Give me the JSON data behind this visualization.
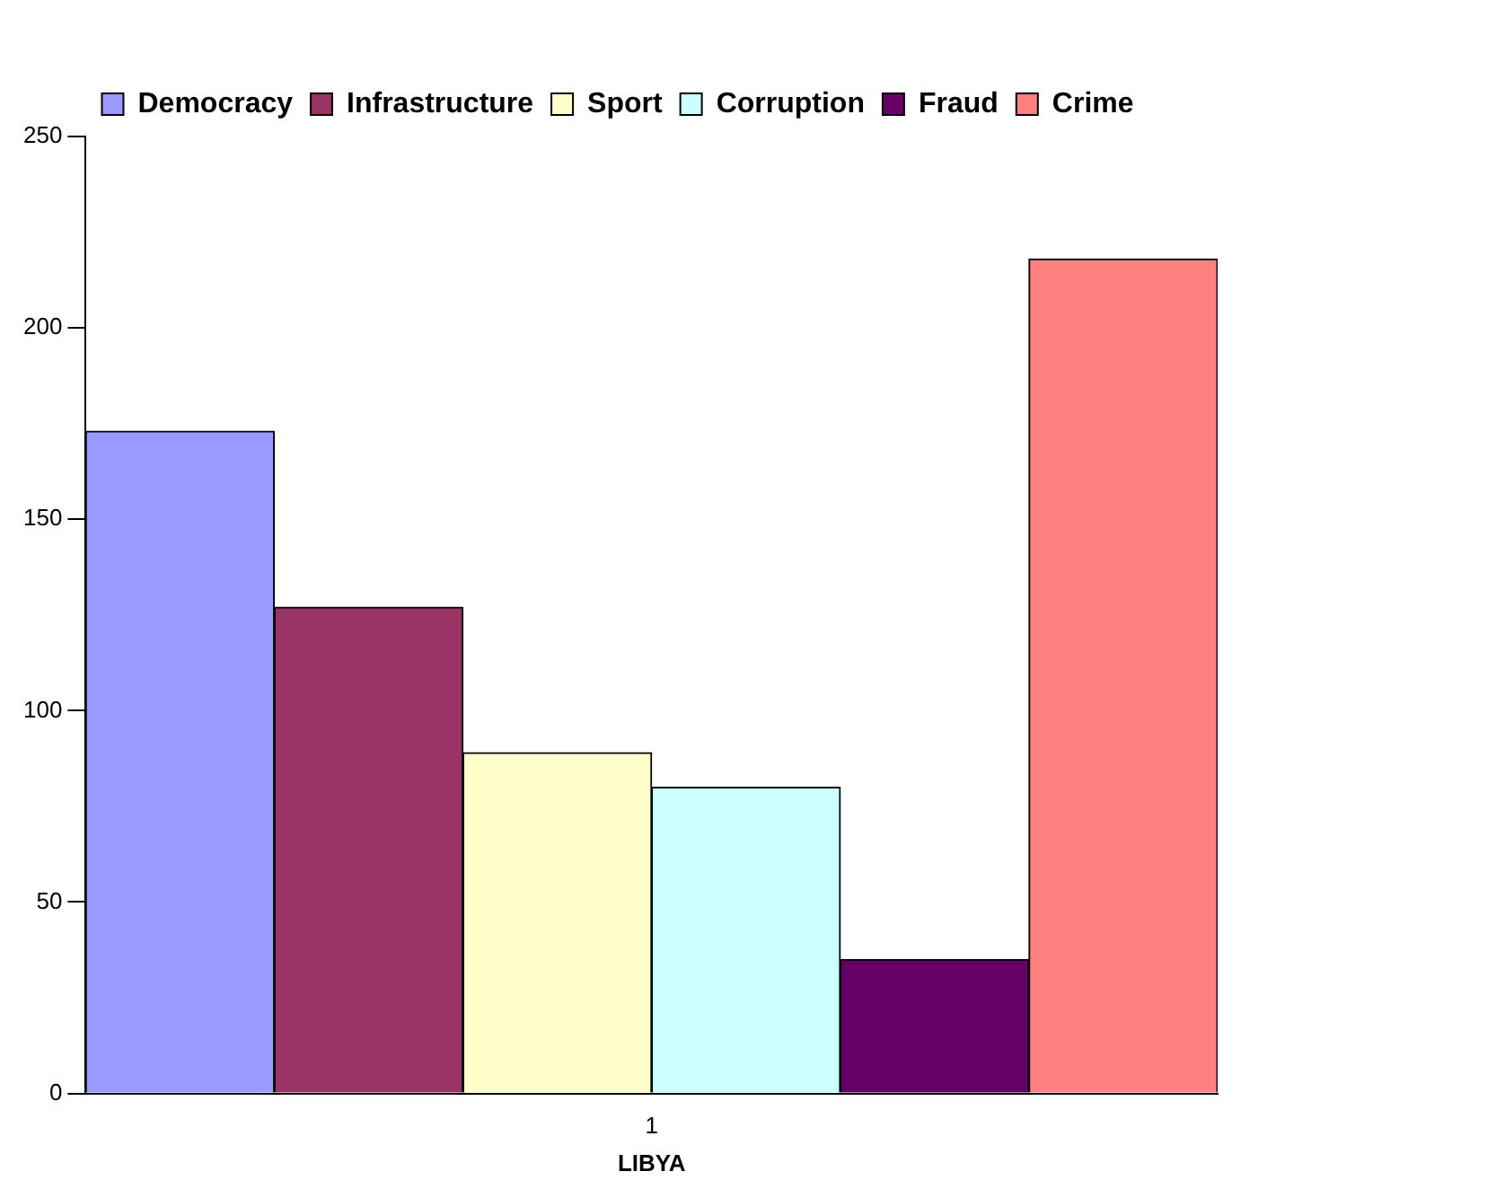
{
  "chart_data": {
    "type": "bar",
    "categories": [
      "1"
    ],
    "xlabel": "LIBYA",
    "ylim": [
      0,
      250
    ],
    "yticks": [
      0,
      50,
      100,
      150,
      200,
      250
    ],
    "grid": false,
    "legend": "top",
    "series": [
      {
        "name": "Democracy",
        "color": "#9999ff",
        "values": [
          173
        ]
      },
      {
        "name": "Infrastructure",
        "color": "#993366",
        "values": [
          127
        ]
      },
      {
        "name": "Sport",
        "color": "#ffffcc",
        "values": [
          89
        ]
      },
      {
        "name": "Corruption",
        "color": "#ccffff",
        "values": [
          80
        ]
      },
      {
        "name": "Fraud",
        "color": "#660066",
        "values": [
          35
        ]
      },
      {
        "name": "Crime",
        "color": "#ff8080",
        "values": [
          218
        ]
      }
    ]
  }
}
